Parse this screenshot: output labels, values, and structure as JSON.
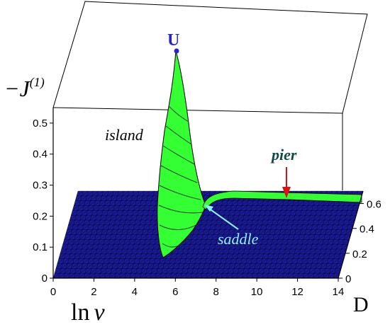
{
  "chart_data": {
    "type": "surface3d",
    "title": "",
    "xlabel": "ln ν",
    "xlabel_parts": {
      "base": "ln",
      "symbol": "ν"
    },
    "ylabel": "D",
    "zlabel": "−J",
    "zlabel_sup": "(1)",
    "x_ticks": [
      0,
      2,
      4,
      6,
      8,
      10,
      12,
      14
    ],
    "y_ticks": [
      0,
      0.2,
      0.4,
      0.6
    ],
    "z_ticks": [
      0,
      0.1,
      0.2,
      0.3,
      0.4,
      0.5
    ],
    "xlim": [
      0,
      14
    ],
    "ylim": [
      0,
      0.7
    ],
    "zlim": [
      0,
      0.55
    ],
    "annotations": {
      "peak": {
        "label": "U",
        "x": 6.5,
        "y": 0.02,
        "z": 0.55
      },
      "island": {
        "label": "island"
      },
      "pier": {
        "label": "pier",
        "x": 12.2,
        "y": 0.03,
        "z": 0.22
      },
      "saddle": {
        "label": "saddle",
        "x": 7.9,
        "y": 0.22,
        "z": 0.2
      }
    },
    "colors": {
      "base_surface": "#1a1a9a",
      "raised_surface": "#33ff33",
      "mesh": "#000000",
      "peak_label": "#2424c8",
      "pier_label": "#0e4a4a",
      "pier_arrow": "#e01010",
      "saddle_label": "#8ef0ff"
    }
  }
}
